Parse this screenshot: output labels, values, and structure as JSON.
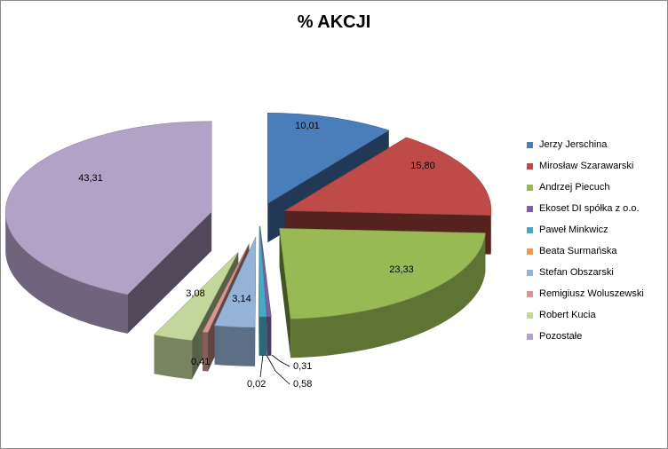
{
  "chart_data": {
    "type": "pie",
    "title": "% AKCJI",
    "legend_position": "right",
    "slices": [
      {
        "label": "Jerzy Jerschina",
        "value": 10.01,
        "value_label": "10,01",
        "color": "#4a7ebb"
      },
      {
        "label": "Mirosław Szarawarski",
        "value": 15.8,
        "value_label": "15,80",
        "color": "#be4b48"
      },
      {
        "label": "Andrzej Piecuch",
        "value": 23.33,
        "value_label": "23,33",
        "color": "#98b954"
      },
      {
        "label": "Ekoset DI spółka z o.o.",
        "value": 0.31,
        "value_label": "0,31",
        "color": "#7d60a0"
      },
      {
        "label": "Paweł Minkwicz",
        "value": 0.58,
        "value_label": "0,58",
        "color": "#46aac5"
      },
      {
        "label": "Beata Surmańska",
        "value": 0.02,
        "value_label": "0,02",
        "color": "#f79646"
      },
      {
        "label": "Stefan Obszarski",
        "value": 3.14,
        "value_label": "3,14",
        "color": "#95b3d7"
      },
      {
        "label": "Remigiusz Woluszewski",
        "value": 0.41,
        "value_label": "0,41",
        "color": "#d99694"
      },
      {
        "label": "Robert Kucia",
        "value": 3.08,
        "value_label": "3,08",
        "color": "#c3d69b"
      },
      {
        "label": "Pozostałe",
        "value": 43.31,
        "value_label": "43,31",
        "color": "#b3a2c7"
      }
    ]
  }
}
